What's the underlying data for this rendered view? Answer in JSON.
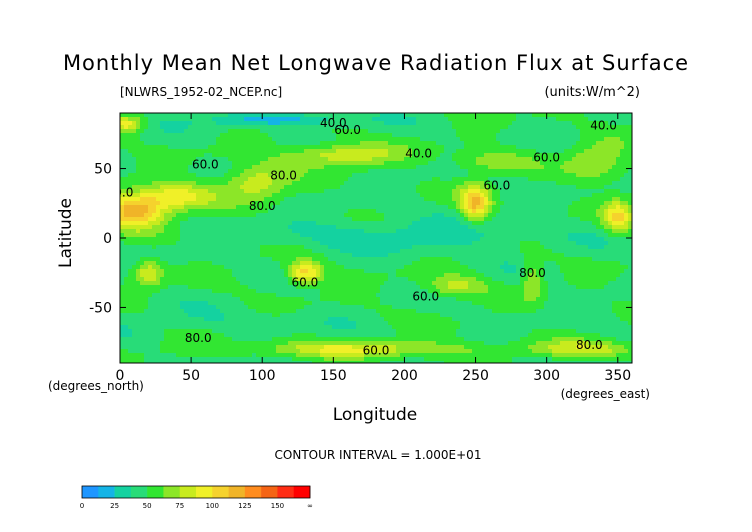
{
  "chart_data": {
    "type": "heatmap",
    "title": "Monthly Mean Net Longwave Radiation Flux at Surface",
    "file_label": "[NLWRS_1952-02_NCEP.nc]",
    "units_label": "(units:W/m^2)",
    "xlabel": "Longitude",
    "ylabel": "Latitude",
    "x_unit_label": "(degrees_east)",
    "y_unit_label": "(degrees_north)",
    "xlim": [
      0,
      360
    ],
    "ylim": [
      -90,
      90
    ],
    "x_ticks": [
      0,
      50,
      100,
      150,
      200,
      250,
      300,
      350
    ],
    "y_ticks": [
      -50,
      0,
      50
    ],
    "contour_interval_text": "CONTOUR INTERVAL = 1.000E+01",
    "contour_labels": [
      "40.0",
      "60.0",
      "80.0"
    ],
    "colorbar": {
      "tick_labels": [
        "0",
        "25",
        "50",
        "75",
        "100",
        "125",
        "150",
        "∞"
      ],
      "colors": [
        "#1e96ff",
        "#14b4e6",
        "#14d2a0",
        "#28dc78",
        "#32e632",
        "#8ce628",
        "#c8eb1e",
        "#f0f028",
        "#f5d22d",
        "#f0b428",
        "#ff8c1e",
        "#f56414",
        "#ff2d14",
        "#ff0000"
      ]
    }
  }
}
